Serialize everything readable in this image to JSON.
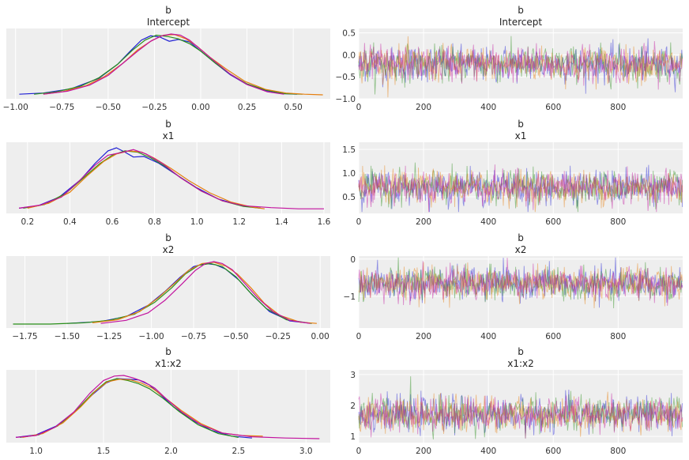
{
  "figure": {
    "type": "trace-plot"
  },
  "chart_data": [
    {
      "type": "line",
      "panel": "density",
      "title": "b",
      "subtitle": "Intercept",
      "xlim": [
        -1.05,
        0.7
      ],
      "xticks": [
        -1.0,
        -0.75,
        -0.5,
        -0.25,
        0.0,
        0.25,
        0.5
      ],
      "xtick_labels": [
        "−1.00",
        "−0.75",
        "−0.50",
        "−0.25",
        "0.00",
        "0.25",
        "0.50"
      ],
      "grid": true,
      "series": [
        {
          "color": "#1f1fd4",
          "x": [
            -0.98,
            -0.85,
            -0.7,
            -0.55,
            -0.45,
            -0.38,
            -0.32,
            -0.27,
            -0.22,
            -0.17,
            -0.12,
            -0.06,
            0.0,
            0.08,
            0.16,
            0.25,
            0.35,
            0.45,
            0.52
          ],
          "y": [
            0.01,
            0.03,
            0.1,
            0.27,
            0.5,
            0.72,
            0.9,
            0.97,
            0.95,
            0.88,
            0.91,
            0.87,
            0.72,
            0.52,
            0.33,
            0.17,
            0.07,
            0.02,
            0.01
          ]
        },
        {
          "color": "#2a8f1a",
          "x": [
            -0.9,
            -0.78,
            -0.65,
            -0.55,
            -0.45,
            -0.37,
            -0.3,
            -0.24,
            -0.18,
            -0.12,
            -0.06,
            0.0,
            0.08,
            0.16,
            0.25,
            0.35,
            0.45,
            0.55
          ],
          "y": [
            0.01,
            0.05,
            0.14,
            0.28,
            0.5,
            0.73,
            0.9,
            0.98,
            0.96,
            0.92,
            0.84,
            0.72,
            0.52,
            0.34,
            0.18,
            0.08,
            0.02,
            0.01
          ]
        },
        {
          "color": "#e67e0e",
          "x": [
            -0.85,
            -0.75,
            -0.62,
            -0.52,
            -0.42,
            -0.34,
            -0.26,
            -0.2,
            -0.14,
            -0.08,
            -0.02,
            0.05,
            0.14,
            0.24,
            0.35,
            0.46,
            0.56,
            0.66
          ],
          "y": [
            0.01,
            0.05,
            0.15,
            0.3,
            0.52,
            0.74,
            0.9,
            0.98,
            0.99,
            0.92,
            0.8,
            0.62,
            0.42,
            0.22,
            0.09,
            0.03,
            0.01,
            0.0
          ]
        },
        {
          "color": "#c2129e",
          "x": [
            -0.85,
            -0.72,
            -0.6,
            -0.5,
            -0.42,
            -0.34,
            -0.27,
            -0.21,
            -0.16,
            -0.11,
            -0.06,
            0.01,
            0.08,
            0.16,
            0.25,
            0.36,
            0.45
          ],
          "y": [
            0.01,
            0.06,
            0.16,
            0.32,
            0.52,
            0.72,
            0.88,
            0.97,
            1.0,
            0.98,
            0.9,
            0.72,
            0.54,
            0.34,
            0.17,
            0.05,
            0.01
          ]
        }
      ]
    },
    {
      "type": "line",
      "panel": "trace",
      "title": "b",
      "subtitle": "Intercept",
      "xlim": [
        0,
        999
      ],
      "ylim": [
        -1.0,
        0.6
      ],
      "xticks": [
        0,
        200,
        400,
        600,
        800
      ],
      "yticks": [
        -1.0,
        -0.5,
        0.0,
        0.5
      ],
      "ytick_labels": [
        "−1.0",
        "−0.5",
        "0.0",
        "0.5"
      ],
      "grid": true,
      "draws": 1000,
      "mean": -0.21,
      "sd": 0.22,
      "colors": [
        "#1f1fd4",
        "#2a8f1a",
        "#e67e0e",
        "#c2129e"
      ]
    },
    {
      "type": "line",
      "panel": "density",
      "title": "b",
      "subtitle": "x1",
      "xlim": [
        0.1,
        1.63
      ],
      "xticks": [
        0.2,
        0.4,
        0.6,
        0.8,
        1.0,
        1.2,
        1.4,
        1.6
      ],
      "xtick_labels": [
        "0.2",
        "0.4",
        "0.6",
        "0.8",
        "1.0",
        "1.2",
        "1.4",
        "1.6"
      ],
      "grid": true,
      "series": [
        {
          "color": "#1f1fd4",
          "x": [
            0.16,
            0.25,
            0.35,
            0.45,
            0.52,
            0.58,
            0.62,
            0.66,
            0.7,
            0.75,
            0.82,
            0.9,
            1.0,
            1.1,
            1.2,
            1.3
          ],
          "y": [
            0.02,
            0.06,
            0.2,
            0.48,
            0.75,
            0.95,
            1.0,
            0.93,
            0.85,
            0.86,
            0.75,
            0.57,
            0.35,
            0.17,
            0.07,
            0.02
          ]
        },
        {
          "color": "#2a8f1a",
          "x": [
            0.18,
            0.28,
            0.38,
            0.46,
            0.54,
            0.6,
            0.66,
            0.72,
            0.78,
            0.85,
            0.93,
            1.02,
            1.12,
            1.22,
            1.3
          ],
          "y": [
            0.02,
            0.08,
            0.26,
            0.5,
            0.74,
            0.88,
            0.95,
            0.93,
            0.84,
            0.7,
            0.5,
            0.3,
            0.14,
            0.05,
            0.02
          ]
        },
        {
          "color": "#e67e0e",
          "x": [
            0.2,
            0.3,
            0.4,
            0.48,
            0.56,
            0.62,
            0.68,
            0.74,
            0.8,
            0.88,
            0.96,
            1.06,
            1.16,
            1.26,
            1.32
          ],
          "y": [
            0.02,
            0.1,
            0.28,
            0.54,
            0.78,
            0.9,
            0.95,
            0.93,
            0.83,
            0.66,
            0.47,
            0.27,
            0.12,
            0.04,
            0.01
          ]
        },
        {
          "color": "#c2129e",
          "x": [
            0.16,
            0.26,
            0.36,
            0.44,
            0.52,
            0.58,
            0.64,
            0.7,
            0.76,
            0.84,
            0.92,
            1.02,
            1.12,
            1.22,
            1.35,
            1.48,
            1.6
          ],
          "y": [
            0.02,
            0.07,
            0.2,
            0.45,
            0.72,
            0.88,
            0.92,
            0.97,
            0.9,
            0.74,
            0.52,
            0.3,
            0.14,
            0.06,
            0.03,
            0.01,
            0.01
          ]
        }
      ]
    },
    {
      "type": "line",
      "panel": "trace",
      "title": "b",
      "subtitle": "x1",
      "xlim": [
        0,
        999
      ],
      "ylim": [
        0.15,
        1.65
      ],
      "xticks": [
        0,
        200,
        400,
        600,
        800
      ],
      "yticks": [
        0.5,
        1.0,
        1.5
      ],
      "ytick_labels": [
        "0.5",
        "1.0",
        "1.5"
      ],
      "grid": true,
      "draws": 1000,
      "mean": 0.7,
      "sd": 0.19,
      "colors": [
        "#1f1fd4",
        "#2a8f1a",
        "#e67e0e",
        "#c2129e"
      ]
    },
    {
      "type": "line",
      "panel": "density",
      "title": "b",
      "subtitle": "x2",
      "xlim": [
        -1.86,
        0.06
      ],
      "xticks": [
        -1.75,
        -1.5,
        -1.25,
        -1.0,
        -0.75,
        -0.5,
        -0.25,
        0.0
      ],
      "xtick_labels": [
        "−1.75",
        "−1.50",
        "−1.25",
        "−1.00",
        "−0.75",
        "−0.50",
        "−0.25",
        "0.00"
      ],
      "grid": true,
      "series": [
        {
          "color": "#1f1fd4",
          "x": [
            -1.5,
            -1.3,
            -1.15,
            -1.02,
            -0.92,
            -0.83,
            -0.75,
            -0.68,
            -0.62,
            -0.56,
            -0.48,
            -0.4,
            -0.3,
            -0.18,
            -0.05
          ],
          "y": [
            0.01,
            0.04,
            0.12,
            0.3,
            0.52,
            0.75,
            0.92,
            0.97,
            0.95,
            0.88,
            0.7,
            0.46,
            0.2,
            0.05,
            0.01
          ]
        },
        {
          "color": "#2a8f1a",
          "x": [
            -1.82,
            -1.6,
            -1.4,
            -1.25,
            -1.1,
            -0.98,
            -0.88,
            -0.8,
            -0.72,
            -0.65,
            -0.58,
            -0.5,
            -0.42,
            -0.32,
            -0.2,
            -0.05
          ],
          "y": [
            0.0,
            0.0,
            0.02,
            0.06,
            0.16,
            0.35,
            0.58,
            0.8,
            0.94,
            0.97,
            0.92,
            0.76,
            0.52,
            0.25,
            0.07,
            0.01
          ]
        },
        {
          "color": "#e67e0e",
          "x": [
            -1.35,
            -1.2,
            -1.07,
            -0.96,
            -0.86,
            -0.78,
            -0.7,
            -0.63,
            -0.56,
            -0.49,
            -0.41,
            -0.33,
            -0.24,
            -0.12,
            -0.02
          ],
          "y": [
            0.02,
            0.07,
            0.2,
            0.42,
            0.66,
            0.86,
            0.97,
            0.99,
            0.93,
            0.8,
            0.58,
            0.33,
            0.14,
            0.03,
            0.01
          ]
        },
        {
          "color": "#c2129e",
          "x": [
            -1.3,
            -1.15,
            -1.02,
            -0.92,
            -0.82,
            -0.74,
            -0.68,
            -0.63,
            -0.58,
            -0.52,
            -0.45,
            -0.37,
            -0.28,
            -0.18,
            -0.06
          ],
          "y": [
            0.01,
            0.06,
            0.18,
            0.38,
            0.64,
            0.86,
            0.97,
            1.0,
            0.97,
            0.87,
            0.66,
            0.42,
            0.2,
            0.06,
            0.01
          ]
        }
      ]
    },
    {
      "type": "line",
      "panel": "trace",
      "title": "b",
      "subtitle": "x2",
      "xlim": [
        0,
        999
      ],
      "ylim": [
        -1.85,
        0.08
      ],
      "xticks": [
        0,
        200,
        400,
        600,
        800
      ],
      "yticks": [
        -1,
        0
      ],
      "ytick_labels": [
        "−1",
        "0"
      ],
      "grid": true,
      "draws": 1000,
      "mean": -0.66,
      "sd": 0.24,
      "colors": [
        "#1f1fd4",
        "#2a8f1a",
        "#e67e0e",
        "#c2129e"
      ]
    },
    {
      "type": "line",
      "panel": "density",
      "title": "b",
      "subtitle": "x1:x2",
      "xlim": [
        0.78,
        3.18
      ],
      "xticks": [
        1.0,
        1.5,
        2.0,
        2.5,
        3.0
      ],
      "xtick_labels": [
        "1.0",
        "1.5",
        "2.0",
        "2.5",
        "3.0"
      ],
      "grid": true,
      "series": [
        {
          "color": "#1f1fd4",
          "x": [
            0.85,
            1.0,
            1.15,
            1.3,
            1.42,
            1.52,
            1.6,
            1.68,
            1.76,
            1.84,
            1.92,
            2.02,
            2.15,
            2.3,
            2.45,
            2.6
          ],
          "y": [
            0.02,
            0.06,
            0.2,
            0.45,
            0.7,
            0.88,
            0.95,
            0.94,
            0.93,
            0.85,
            0.7,
            0.5,
            0.3,
            0.13,
            0.04,
            0.01
          ]
        },
        {
          "color": "#2a8f1a",
          "x": [
            0.88,
            1.02,
            1.16,
            1.3,
            1.42,
            1.52,
            1.6,
            1.68,
            1.76,
            1.84,
            1.94,
            2.06,
            2.2,
            2.35,
            2.5
          ],
          "y": [
            0.02,
            0.06,
            0.2,
            0.45,
            0.72,
            0.9,
            0.95,
            0.92,
            0.87,
            0.79,
            0.64,
            0.43,
            0.22,
            0.08,
            0.02
          ]
        },
        {
          "color": "#e67e0e",
          "x": [
            0.9,
            1.05,
            1.2,
            1.33,
            1.44,
            1.53,
            1.62,
            1.7,
            1.78,
            1.86,
            1.96,
            2.08,
            2.22,
            2.38,
            2.52,
            2.68
          ],
          "y": [
            0.02,
            0.08,
            0.25,
            0.5,
            0.75,
            0.9,
            0.94,
            0.93,
            0.88,
            0.8,
            0.64,
            0.44,
            0.24,
            0.09,
            0.05,
            0.04
          ]
        },
        {
          "color": "#c2129e",
          "x": [
            0.85,
            1.0,
            1.14,
            1.28,
            1.4,
            1.5,
            1.58,
            1.65,
            1.72,
            1.8,
            1.88,
            1.97,
            2.08,
            2.22,
            2.38,
            2.6,
            2.85,
            3.1
          ],
          "y": [
            0.02,
            0.05,
            0.18,
            0.42,
            0.72,
            0.92,
            0.99,
            1.0,
            0.96,
            0.9,
            0.8,
            0.62,
            0.42,
            0.22,
            0.09,
            0.03,
            0.01,
            0.0
          ]
        }
      ]
    },
    {
      "type": "line",
      "panel": "trace",
      "title": "b",
      "subtitle": "x1:x2",
      "xlim": [
        0,
        999
      ],
      "ylim": [
        0.8,
        3.15
      ],
      "xticks": [
        0,
        200,
        400,
        600,
        800
      ],
      "yticks": [
        1,
        2,
        3
      ],
      "ytick_labels": [
        "1",
        "2",
        "3"
      ],
      "grid": true,
      "draws": 1000,
      "mean": 1.72,
      "sd": 0.3,
      "colors": [
        "#1f1fd4",
        "#2a8f1a",
        "#e67e0e",
        "#c2129e"
      ]
    }
  ]
}
